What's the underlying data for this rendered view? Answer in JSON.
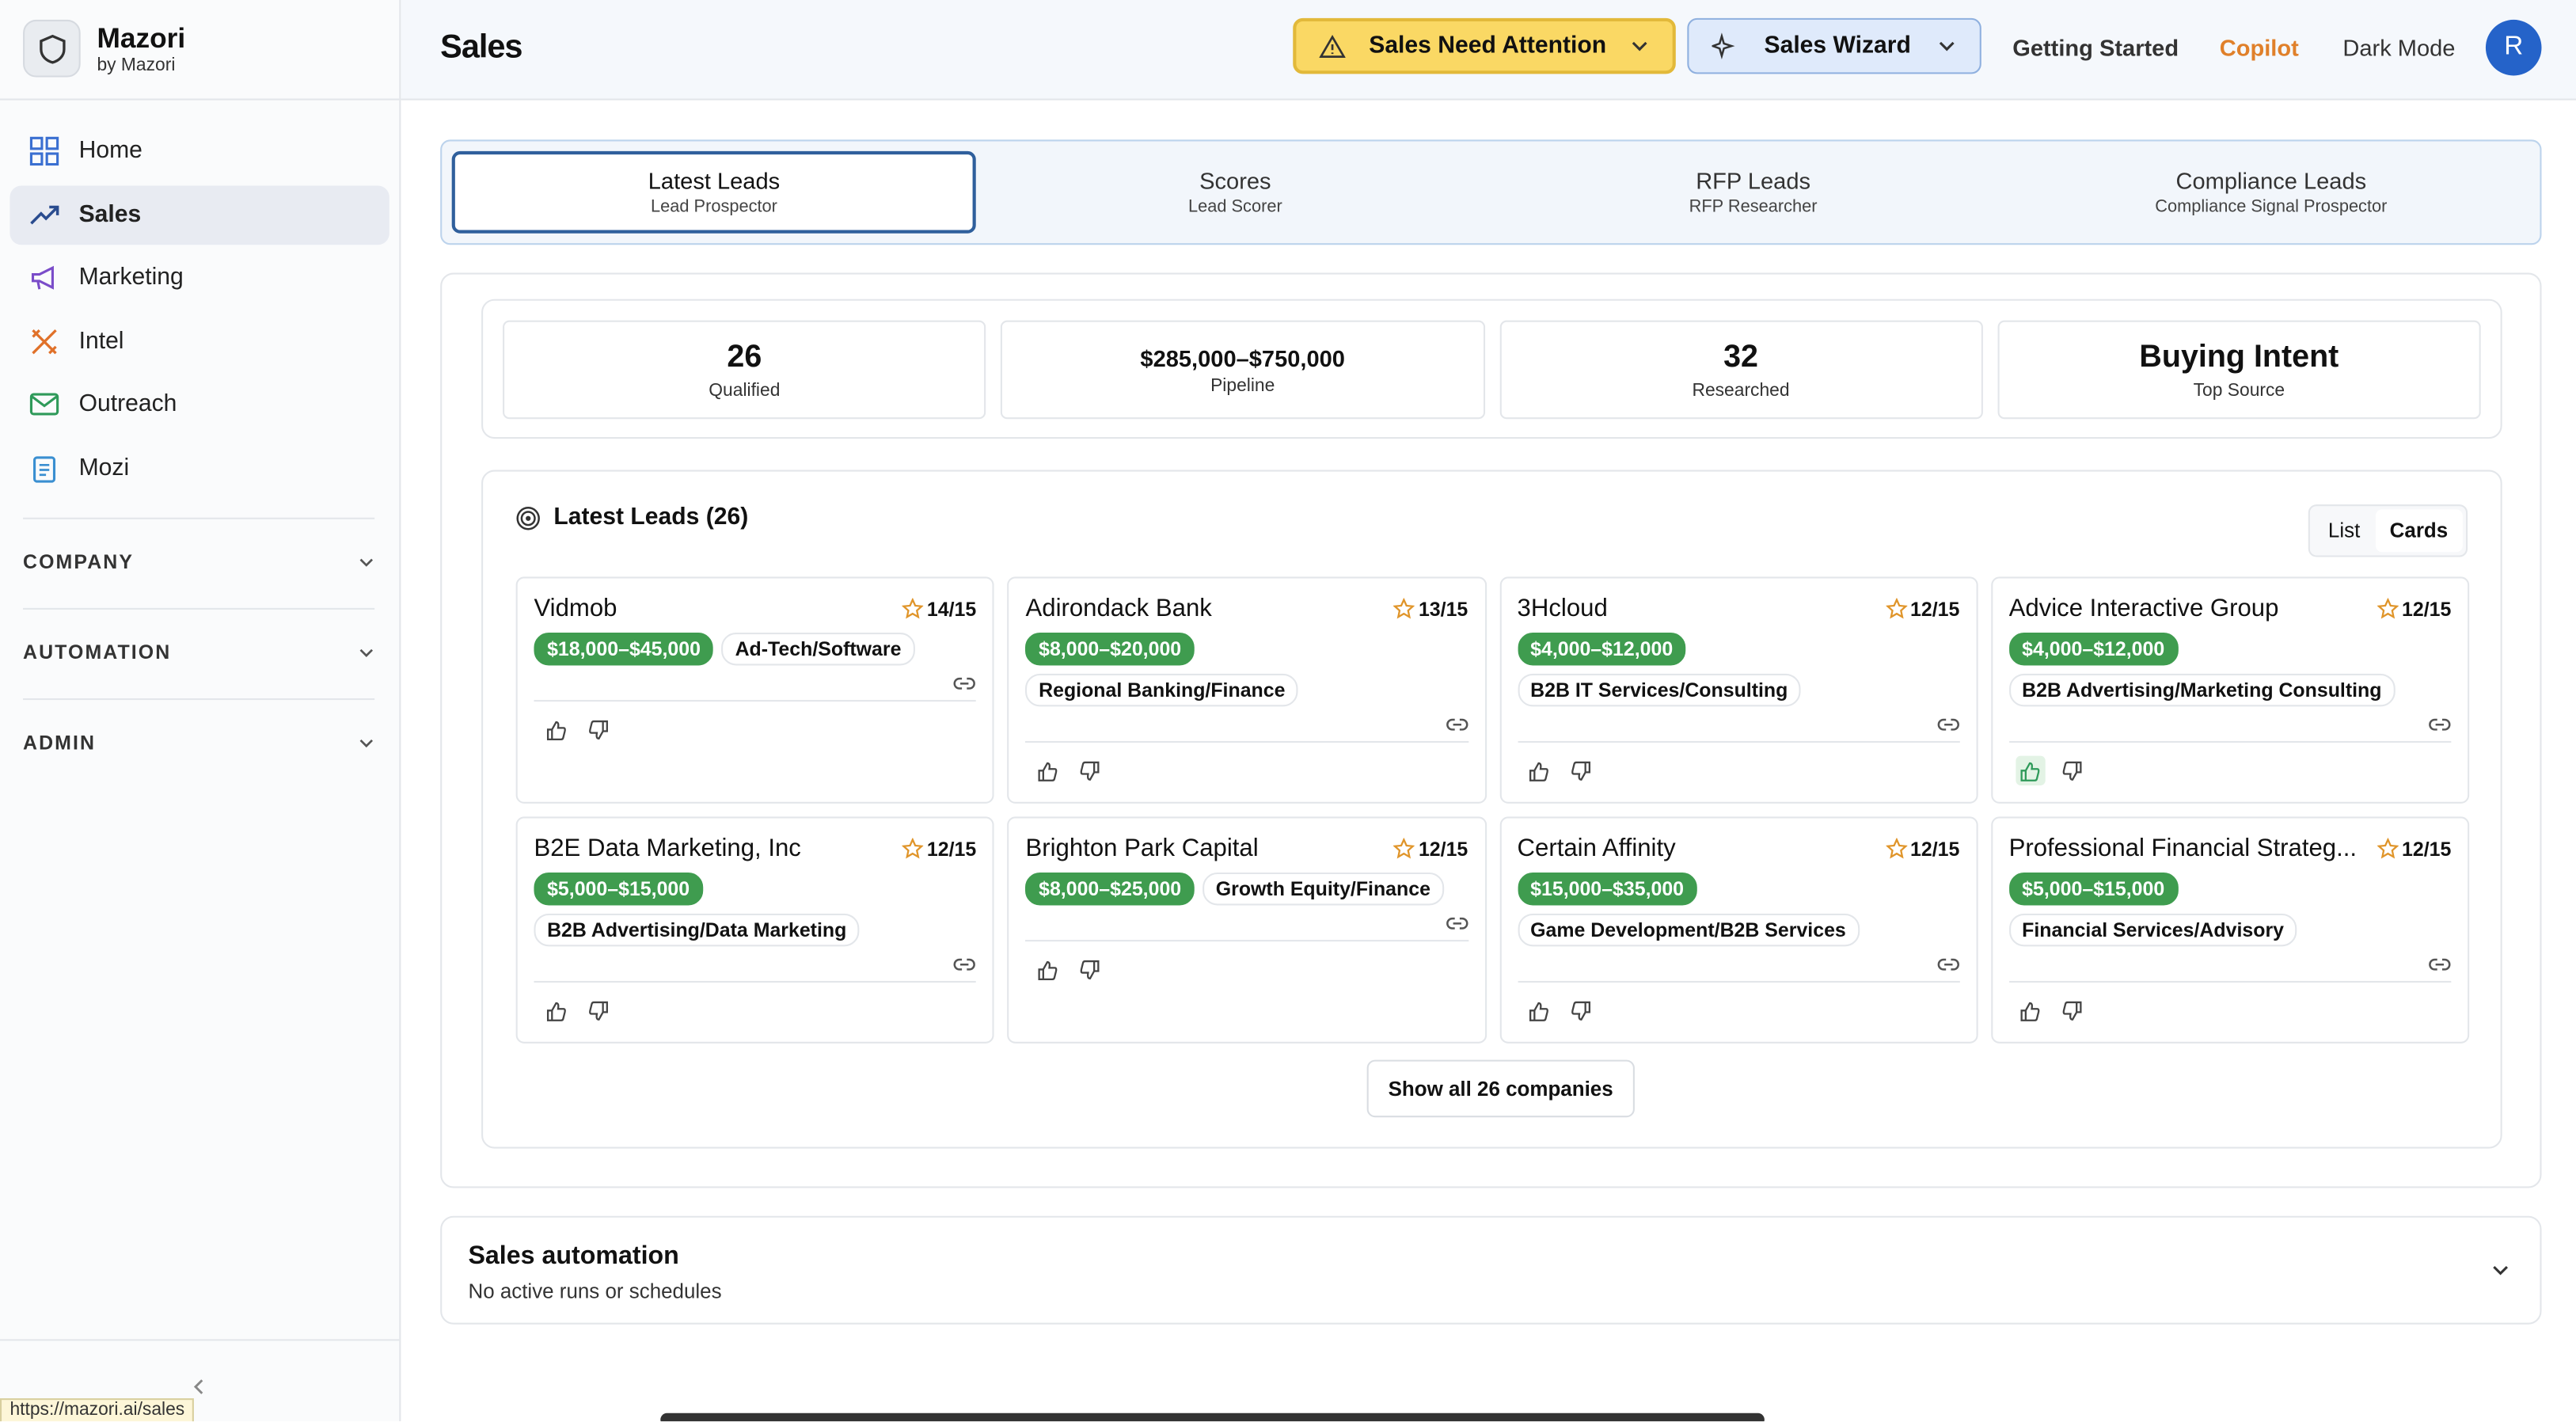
{
  "sidebar": {
    "brand": "Mazori",
    "brand_sub": "by Mazori",
    "nav": [
      "Home",
      "Sales",
      "Marketing",
      "Intel",
      "Outreach",
      "Mozi"
    ],
    "active": 1,
    "sections": [
      "COMPANY",
      "AUTOMATION",
      "ADMIN"
    ]
  },
  "header": {
    "title": "Sales",
    "alert": "Sales Need Attention",
    "wizard": "Sales Wizard",
    "links": [
      "Getting Started",
      "Copilot",
      "Dark Mode"
    ],
    "avatar": "R"
  },
  "tabs": [
    {
      "label": "Latest Leads",
      "sub": "Lead Prospector"
    },
    {
      "label": "Scores",
      "sub": "Lead Scorer"
    },
    {
      "label": "RFP Leads",
      "sub": "RFP Researcher"
    },
    {
      "label": "Compliance Leads",
      "sub": "Compliance Signal Prospector"
    }
  ],
  "stats": [
    {
      "value": 26,
      "label": "Qualified"
    },
    {
      "value": "$285,000–$750,000",
      "label": "Pipeline"
    },
    {
      "value": 32,
      "label": "Researched"
    },
    {
      "value": "Buying Intent",
      "label": "Top Source"
    }
  ],
  "leads": {
    "title": "Latest Leads (26)",
    "views": [
      "List",
      "Cards"
    ],
    "cards": [
      {
        "name": "Vidmob",
        "score": "14/15",
        "range": "$18,000–$45,000",
        "tags": [
          "Ad-Tech/Software"
        ]
      },
      {
        "name": "Adirondack Bank",
        "score": "13/15",
        "range": "$8,000–$20,000",
        "tags": [
          "Regional Banking/Finance"
        ]
      },
      {
        "name": "3Hcloud",
        "score": "12/15",
        "range": "$4,000–$12,000",
        "tags": [
          "B2B IT Services/Consulting"
        ]
      },
      {
        "name": "Advice Interactive Group",
        "score": "12/15",
        "range": "$4,000–$12,000",
        "tags": [
          "B2B Advertising/Marketing Consulting"
        ],
        "liked": true
      },
      {
        "name": "B2E Data Marketing, Inc",
        "score": "12/15",
        "range": "$5,000–$15,000",
        "tags": [
          "B2B Advertising/Data Marketing"
        ]
      },
      {
        "name": "Brighton Park Capital",
        "score": "12/15",
        "range": "$8,000–$25,000",
        "tags": [
          "Growth Equity/Finance"
        ]
      },
      {
        "name": "Certain Affinity",
        "score": "12/15",
        "range": "$15,000–$35,000",
        "tags": [
          "Game Development/B2B Services"
        ]
      },
      {
        "name": "Professional Financial Strateg...",
        "score": "12/15",
        "range": "$5,000–$15,000",
        "tags": [
          "Financial Services/Advisory"
        ]
      }
    ],
    "show_all": "Show all 26 companies"
  },
  "automation": {
    "title": "Sales automation",
    "sub": "No active runs or schedules"
  },
  "status_url": "https://mazori.ai/sales"
}
